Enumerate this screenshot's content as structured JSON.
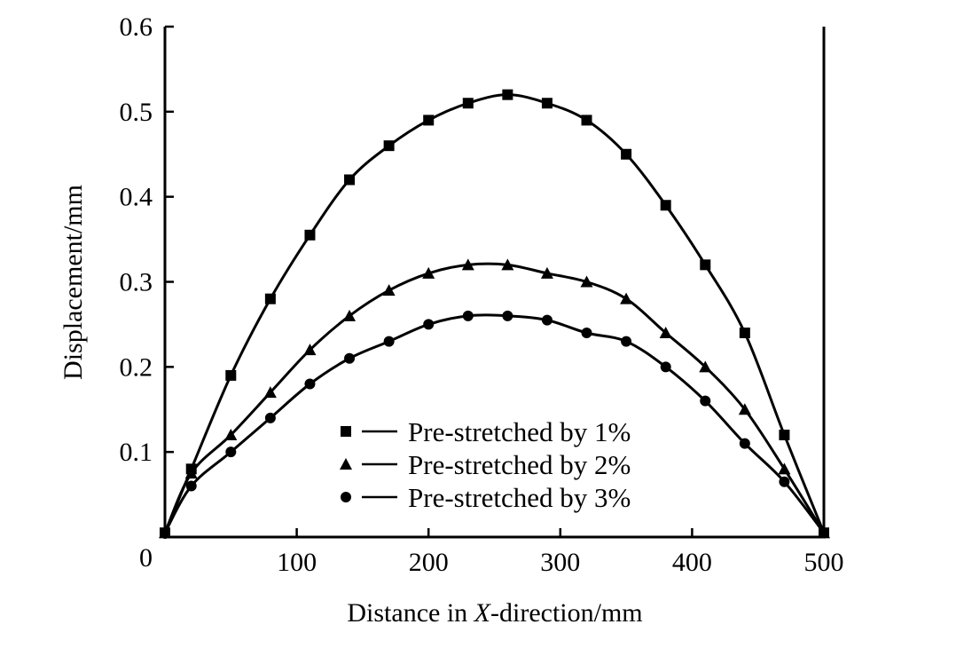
{
  "chart_data": {
    "type": "line",
    "title": "",
    "xlabel_prefix": "Distance in ",
    "xlabel_italic": "X",
    "xlabel_suffix": "-direction/mm",
    "ylabel": "Displacement/mm",
    "xlim": [
      0,
      500
    ],
    "ylim": [
      0,
      0.6
    ],
    "xticks": [
      "0",
      "100",
      "200",
      "300",
      "400",
      "500"
    ],
    "xtick_values": [
      0,
      100,
      200,
      300,
      400,
      500
    ],
    "yticks": [
      "0.1",
      "0.2",
      "0.3",
      "0.4",
      "0.5",
      "0.6"
    ],
    "ytick_values": [
      0.1,
      0.2,
      0.3,
      0.4,
      0.5,
      0.6
    ],
    "grid": false,
    "legend_position": "bottom-center",
    "x": [
      0,
      20,
      50,
      80,
      110,
      140,
      170,
      200,
      230,
      260,
      290,
      320,
      350,
      380,
      410,
      440,
      470,
      500
    ],
    "series": [
      {
        "name": "Pre-stretched by 1%",
        "marker": "square",
        "values": [
          0.005,
          0.08,
          0.19,
          0.28,
          0.355,
          0.42,
          0.46,
          0.49,
          0.51,
          0.52,
          0.51,
          0.49,
          0.45,
          0.39,
          0.32,
          0.24,
          0.12,
          0.005
        ]
      },
      {
        "name": "Pre-stretched by 2%",
        "marker": "triangle",
        "values": [
          0.005,
          0.075,
          0.12,
          0.17,
          0.22,
          0.26,
          0.29,
          0.31,
          0.32,
          0.32,
          0.31,
          0.3,
          0.28,
          0.24,
          0.2,
          0.15,
          0.08,
          0.005
        ]
      },
      {
        "name": "Pre-stretched by 3%",
        "marker": "circle",
        "values": [
          0.005,
          0.06,
          0.1,
          0.14,
          0.18,
          0.21,
          0.23,
          0.25,
          0.26,
          0.26,
          0.255,
          0.24,
          0.23,
          0.2,
          0.16,
          0.11,
          0.065,
          0.005
        ]
      }
    ],
    "colors": {
      "ink": "#000000",
      "background": "#ffffff"
    }
  }
}
